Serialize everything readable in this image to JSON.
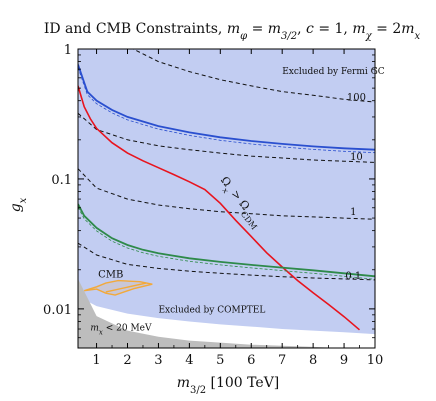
{
  "chart_data": {
    "type": "line",
    "title": "ID and CMB Constraints, m_φ = m_3/2, c = 1, m_χ = 2m_x",
    "xlabel": "m_3/2 [100 TeV]",
    "ylabel": "g_x",
    "xlim": [
      0.4,
      10
    ],
    "ylim": [
      0.005,
      1
    ],
    "yscale": "log",
    "x_ticks": [
      1,
      2,
      3,
      4,
      5,
      6,
      7,
      8,
      9,
      10
    ],
    "y_ticks": [
      {
        "value": 0.01,
        "label": "0.01"
      },
      {
        "value": 0.1,
        "label": "0.1"
      },
      {
        "value": 1,
        "label": "1"
      }
    ],
    "regions": [
      {
        "label": "Excluded by Fermi GC",
        "color": "#c6e2d2",
        "text_color": "#2e9a46",
        "lower": {
          "x": [
            0.4,
            0.7,
            1,
            1.5,
            2,
            3,
            4,
            5,
            6,
            7,
            8,
            9,
            10
          ],
          "y": [
            0.76,
            0.47,
            0.4,
            0.34,
            0.3,
            0.255,
            0.228,
            0.209,
            0.196,
            0.186,
            0.178,
            0.172,
            0.168
          ]
        }
      },
      {
        "label": "",
        "color": "#9cb8d2",
        "lower": {
          "x": [
            0.4,
            0.6,
            1,
            1.5,
            2,
            2.5,
            3,
            4,
            5,
            6,
            7,
            8,
            9,
            10
          ],
          "y": [
            0.064,
            0.052,
            0.042,
            0.035,
            0.031,
            0.0285,
            0.0268,
            0.0245,
            0.023,
            0.0218,
            0.0208,
            0.0198,
            0.0188,
            0.0178
          ]
        }
      },
      {
        "label": "Excluded by COMPTEL",
        "color": "#c2cdf2",
        "text_color": "#4a6ed8",
        "lower": {
          "x": [
            0.4,
            1,
            2,
            3,
            4,
            5,
            6,
            7,
            8,
            9,
            10
          ],
          "y": [
            0.0125,
            0.0105,
            0.0092,
            0.0085,
            0.008,
            0.0076,
            0.0073,
            0.007,
            0.0068,
            0.0066,
            0.0064
          ]
        }
      },
      {
        "label": "m_x < 20 MeV",
        "color": "#bdbdbd",
        "text_color": "#222222",
        "upper": {
          "x": [
            0.4,
            1,
            2,
            3,
            4,
            5,
            6,
            7,
            8,
            9,
            10
          ],
          "y": [
            0.017,
            0.0088,
            0.0068,
            0.0061,
            0.0057,
            0.0055,
            0.0053,
            0.0052,
            0.0051,
            0.005,
            0.005
          ]
        }
      }
    ],
    "series": [
      {
        "name": "Ω_x > Ω_CDM",
        "color": "#e8141e",
        "style": "solid",
        "x": [
          0.4,
          0.6,
          0.8,
          1,
          1.5,
          2,
          2.5,
          3,
          3.5,
          4,
          4.5,
          5,
          5.5,
          6,
          6.5,
          7,
          7.5,
          8,
          8.5,
          9,
          9.5
        ],
        "y": [
          0.52,
          0.36,
          0.29,
          0.245,
          0.19,
          0.158,
          0.138,
          0.122,
          0.108,
          0.095,
          0.083,
          0.065,
          0.048,
          0.036,
          0.027,
          0.021,
          0.0165,
          0.0133,
          0.0108,
          0.0087,
          0.0069
        ]
      },
      {
        "name": "",
        "color": "#2a4fcf",
        "style": "solid",
        "x": [
          0.4,
          0.7,
          1,
          1.5,
          2,
          3,
          4,
          5,
          6,
          7,
          8,
          9,
          10
        ],
        "y": [
          0.76,
          0.47,
          0.4,
          0.34,
          0.3,
          0.255,
          0.228,
          0.209,
          0.196,
          0.186,
          0.178,
          0.172,
          0.168
        ]
      },
      {
        "name": "",
        "color": "#2e8a4a",
        "style": "solid",
        "x": [
          0.4,
          0.6,
          1,
          1.5,
          2,
          2.5,
          3,
          4,
          5,
          6,
          7,
          8,
          9,
          10
        ],
        "y": [
          0.064,
          0.052,
          0.042,
          0.035,
          0.031,
          0.0285,
          0.0268,
          0.0245,
          0.023,
          0.0218,
          0.0208,
          0.0198,
          0.0188,
          0.0178
        ]
      }
    ],
    "contours": [
      {
        "label": "100",
        "label_at": [
          9.4,
          0.4
        ],
        "x": [
          0.4,
          1,
          2,
          3,
          4,
          5,
          6,
          7,
          8,
          9,
          10
        ],
        "y": [
          3.5,
          1.5,
          1.05,
          0.8,
          0.67,
          0.58,
          0.52,
          0.47,
          0.44,
          0.41,
          0.39
        ]
      },
      {
        "label": "10",
        "label_at": [
          9.4,
          0.14
        ],
        "x": [
          0.4,
          1,
          2,
          3,
          4,
          5,
          6,
          7,
          8,
          9,
          10
        ],
        "y": [
          0.32,
          0.24,
          0.2,
          0.18,
          0.168,
          0.158,
          0.15,
          0.145,
          0.14,
          0.137,
          0.134
        ]
      },
      {
        "label": "1",
        "label_at": [
          9.3,
          0.053
        ],
        "x": [
          0.4,
          1,
          2,
          3,
          4,
          5,
          6,
          7,
          8,
          9,
          10
        ],
        "y": [
          0.12,
          0.085,
          0.07,
          0.063,
          0.059,
          0.056,
          0.054,
          0.052,
          0.051,
          0.05,
          0.049
        ]
      },
      {
        "label": "0.1",
        "label_at": [
          9.3,
          0.017
        ],
        "x": [
          0.4,
          1,
          2,
          3,
          4,
          5,
          6,
          7,
          8,
          9,
          10
        ],
        "y": [
          0.032,
          0.026,
          0.022,
          0.0205,
          0.0195,
          0.0188,
          0.0182,
          0.0177,
          0.0173,
          0.017,
          0.0167
        ]
      }
    ],
    "cmb": {
      "label": "CMB",
      "color": "#f2a93b",
      "x": [
        0.6,
        1.0,
        1.3,
        1.6,
        2.2,
        2.8,
        2.4,
        1.7,
        1.3,
        1.0
      ],
      "y": [
        0.0138,
        0.0142,
        0.0132,
        0.0128,
        0.0143,
        0.0155,
        0.0162,
        0.0165,
        0.0158,
        0.0148
      ]
    },
    "annotations": {
      "fermi": "Excluded by Fermi GC",
      "comptel": "Excluded by COMPTEL",
      "mass": "m_x < 20 MeV",
      "relic": "Ω_x > Ω_CDM",
      "cmb": "CMB"
    }
  }
}
